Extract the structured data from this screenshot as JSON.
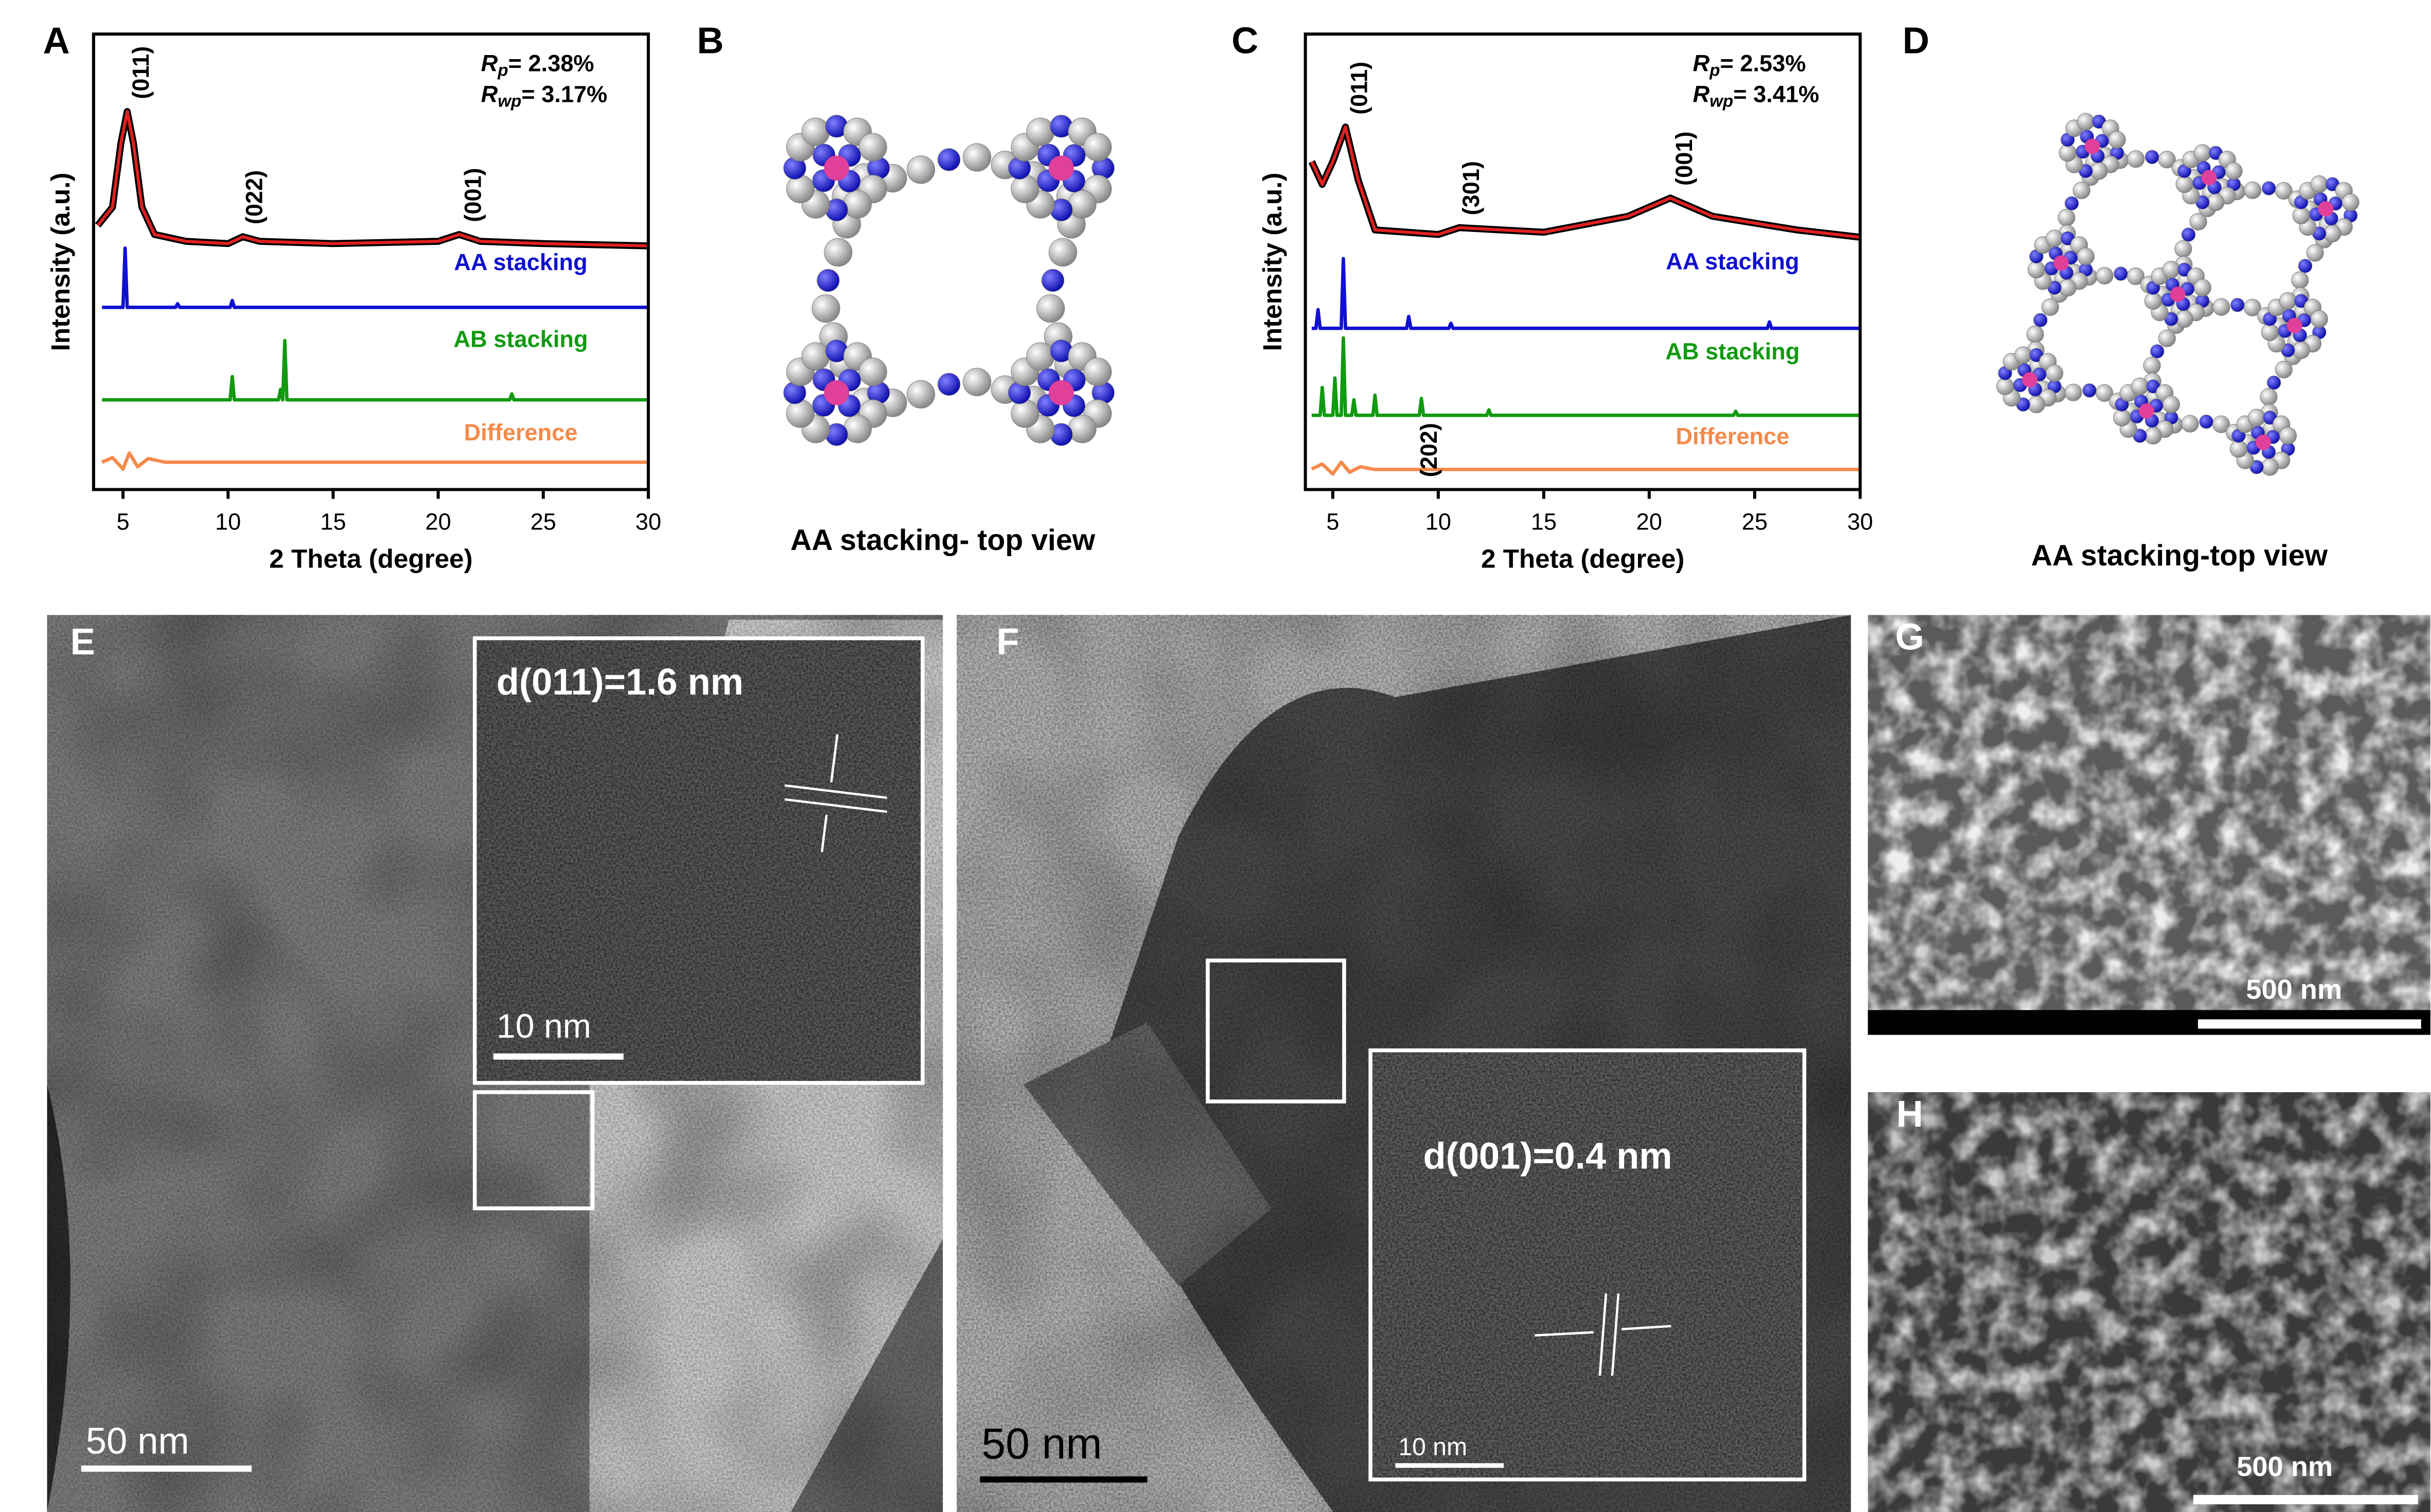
{
  "panel_labels": [
    "A",
    "B",
    "C",
    "D",
    "E",
    "F",
    "G",
    "H"
  ],
  "chart_data": [
    {
      "type": "line",
      "xlabel": "2 Theta (degree)",
      "ylabel": "Intensity (a.u.)",
      "xlim": [
        3.6,
        30
      ],
      "xticks": [
        5,
        10,
        15,
        20,
        25,
        30
      ],
      "ylim": [
        0,
        100
      ],
      "fit_stats": [
        {
          "symbol": "R",
          "sub": "p",
          "text": "= 2.38%"
        },
        {
          "symbol": "R",
          "sub": "wp",
          "text": "= 3.17%"
        }
      ],
      "annotations": [
        {
          "text": "(011)",
          "x": 5.2
        },
        {
          "text": "(022)",
          "x": 10.6
        },
        {
          "text": "(001)",
          "x": 21
        }
      ],
      "series": [
        {
          "color": "#e02020",
          "x": [
            3.8,
            4.5,
            4.9,
            5.2,
            5.5,
            5.9,
            6.5,
            8,
            10,
            10.7,
            11.5,
            15,
            20,
            21,
            22,
            25,
            30
          ],
          "values": [
            58,
            62,
            76,
            83,
            76,
            62,
            56,
            54.5,
            54,
            55.5,
            54.5,
            54,
            54.5,
            56,
            54.5,
            54,
            53.5
          ]
        },
        {
          "name": "AA stacking",
          "color": "#1010d0",
          "x": [
            4,
            5,
            5.1,
            5.2,
            7.5,
            7.6,
            7.7,
            10.1,
            10.2,
            10.3,
            30
          ],
          "values": [
            40,
            40,
            53,
            40,
            40,
            40.8,
            40,
            40,
            41.5,
            40,
            40
          ]
        },
        {
          "name": "AB stacking",
          "color": "#119a11",
          "x": [
            4,
            10.1,
            10.2,
            10.3,
            12.4,
            12.5,
            12.6,
            12.7,
            12.8,
            23.4,
            23.5,
            23.6,
            30
          ],
          "values": [
            19.7,
            19.7,
            24.8,
            19.7,
            19.7,
            22,
            19.7,
            32.7,
            19.7,
            19.7,
            21,
            19.7,
            19.7
          ]
        },
        {
          "name": "Difference",
          "color": "#f58a4a",
          "x": [
            4,
            4.5,
            5,
            5.3,
            5.7,
            6.2,
            7,
            30
          ],
          "values": [
            6,
            7,
            4.5,
            8,
            5,
            6.8,
            6,
            6
          ]
        }
      ]
    },
    {
      "type": "line",
      "xlabel": "2 Theta (degree)",
      "ylabel": "Intensity (a.u.)",
      "xlim": [
        3.7,
        30
      ],
      "xticks": [
        5,
        10,
        15,
        20,
        25,
        30
      ],
      "ylim": [
        0,
        100
      ],
      "fit_stats": [
        {
          "symbol": "R",
          "sub": "p",
          "text": "= 2.53%"
        },
        {
          "symbol": "R",
          "sub": "wp",
          "text": "= 3.41%"
        }
      ],
      "annotations": [
        {
          "text": "(011)",
          "x": 5.6
        },
        {
          "text": "(202)",
          "x": 8.9
        },
        {
          "text": "(301)",
          "x": 10.9
        },
        {
          "text": "(001)",
          "x": 21
        }
      ],
      "series": [
        {
          "color": "#e02020",
          "x": [
            4,
            4.5,
            5,
            5.6,
            6.2,
            7,
            10,
            11,
            15,
            19,
            21,
            23,
            27,
            30
          ],
          "values": [
            72,
            67,
            72,
            79.6,
            68,
            57,
            56,
            57.5,
            56.5,
            60,
            64,
            60,
            57,
            55.4
          ]
        },
        {
          "name": "AA stacking",
          "color": "#1010d0",
          "x": [
            4,
            4.2,
            4.3,
            4.4,
            5.4,
            5.5,
            5.6,
            8.5,
            8.6,
            8.7,
            10.5,
            10.6,
            10.7,
            25.6,
            25.7,
            25.8,
            30
          ],
          "values": [
            35.4,
            35.4,
            39.5,
            35.4,
            35.4,
            50.7,
            35.4,
            35.4,
            38,
            35.4,
            35.4,
            36.5,
            35.4,
            35.4,
            36.8,
            35.4,
            35.4
          ]
        },
        {
          "name": "AB stacking",
          "color": "#119a11",
          "x": [
            4,
            4.4,
            4.5,
            4.6,
            5,
            5.1,
            5.2,
            5.4,
            5.5,
            5.6,
            5.9,
            6,
            6.1,
            6.9,
            7,
            7.1,
            9.1,
            9.2,
            9.3,
            12.3,
            12.4,
            12.5,
            24,
            24.1,
            24.2,
            30
          ],
          "values": [
            16.3,
            16.3,
            22.4,
            16.3,
            16.3,
            24.5,
            16.3,
            16.3,
            33.3,
            16.3,
            16.3,
            19.7,
            16.3,
            16.3,
            20.7,
            16.3,
            16.3,
            20,
            16.3,
            16.3,
            17.5,
            16.3,
            16.3,
            17.2,
            16.3,
            16.3
          ]
        },
        {
          "name": "Difference",
          "color": "#f58a4a",
          "x": [
            4,
            4.5,
            5,
            5.4,
            5.8,
            6.3,
            7,
            30
          ],
          "values": [
            4.5,
            5.6,
            3.4,
            6,
            3.8,
            5,
            4.4,
            4.4
          ]
        }
      ]
    }
  ],
  "panels": {
    "B": {
      "caption": "AA stacking- top view"
    },
    "D": {
      "caption": "AA stacking-top view"
    },
    "E": {
      "inset_label": "d(011)=1.6 nm",
      "inset_scale": "10 nm",
      "scale": "50 nm"
    },
    "F": {
      "inset_label": "d(001)=0.4 nm",
      "inset_scale": "10 nm",
      "scale": "50 nm"
    },
    "G": {
      "scale": "500 nm"
    },
    "H": {
      "scale": "500 nm"
    }
  }
}
